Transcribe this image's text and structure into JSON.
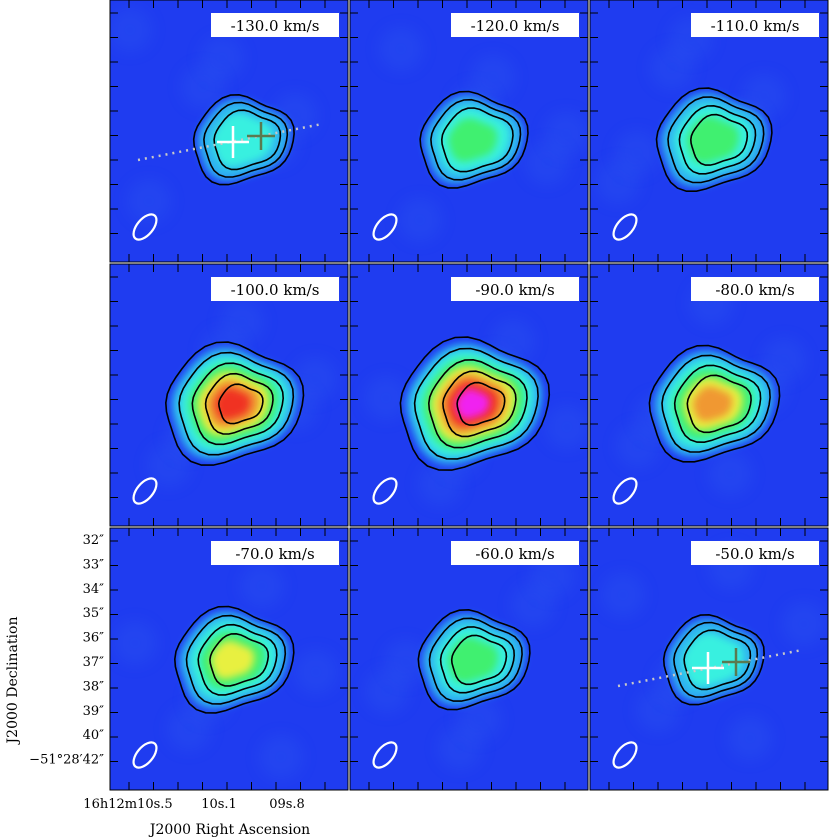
{
  "chart_data": {
    "type": "heatmap",
    "title": "",
    "xlabel": "J2000 Right Ascension",
    "ylabel": "J2000 Declination",
    "grid": false,
    "colors": {
      "background": "#1f3cf0",
      "contour": "#000000",
      "beam": "#ffffff",
      "marker_white": "#ffffff",
      "marker_green": "#5a7a50",
      "outflow_line": "#c8c8c8",
      "colormap": [
        "#1f3cf0",
        "#2fb4f0",
        "#38f0e0",
        "#40f070",
        "#e8f040",
        "#f09830",
        "#f03020",
        "#f020f0"
      ]
    },
    "x_tick_labels": [
      "16h12m10s.5",
      "10s.1",
      "09s.8"
    ],
    "y_tick_labels": [
      "32″",
      "33″",
      "34″",
      "35″",
      "36″",
      "37″",
      "38″",
      "39″",
      "40″",
      "−51°28′42″"
    ],
    "panels": [
      {
        "velocity": -130.0,
        "label": "-130.0 km/s",
        "peak": 0.35
      },
      {
        "velocity": -120.0,
        "label": "-120.0 km/s",
        "peak": 0.45
      },
      {
        "velocity": -110.0,
        "label": "-110.0 km/s",
        "peak": 0.55
      },
      {
        "velocity": -100.0,
        "label": "-100.0 km/s",
        "peak": 0.85
      },
      {
        "velocity": -90.0,
        "label": "-90.0 km/s",
        "peak": 1.0
      },
      {
        "velocity": -80.0,
        "label": "-80.0 km/s",
        "peak": 0.75
      },
      {
        "velocity": -70.0,
        "label": "-70.0 km/s",
        "peak": 0.6
      },
      {
        "velocity": -60.0,
        "label": "-60.0 km/s",
        "peak": 0.5
      },
      {
        "velocity": -50.0,
        "label": "-50.0 km/s",
        "peak": 0.35
      }
    ],
    "velocity_unit": "km/s"
  }
}
